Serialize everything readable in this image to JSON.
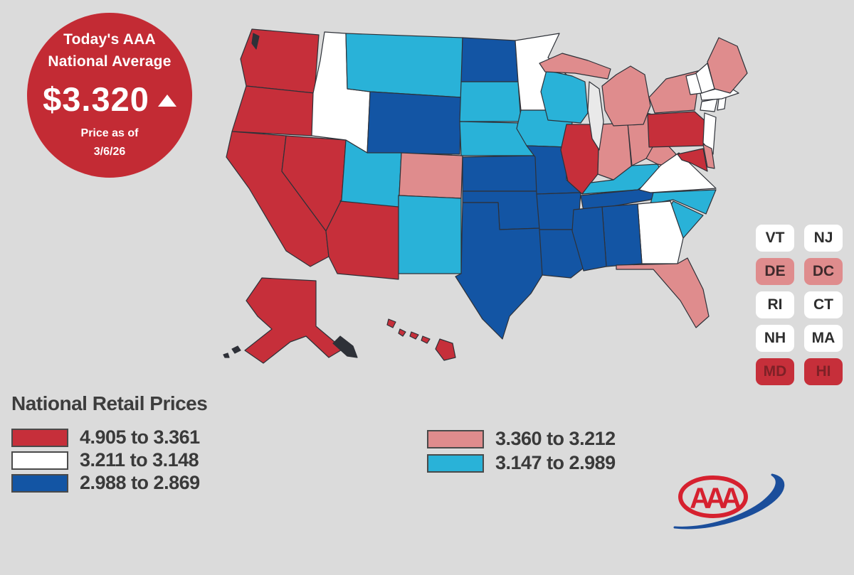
{
  "badge": {
    "line1": "Today's AAA",
    "line2": "National Average",
    "price": "$3.320",
    "trend": "up",
    "price_as_of_label": "Price as of",
    "date": "3/6/26",
    "background": "#C32B34"
  },
  "tiers": {
    "red": {
      "color": "#C62F3A",
      "range": "4.905 to 3.361"
    },
    "pink": {
      "color": "#DF8C8D",
      "range": "3.360 to 3.212"
    },
    "white": {
      "color": "#FFFFFF",
      "range": "3.211 to 3.148"
    },
    "cyan": {
      "color": "#29B2D8",
      "range": "3.147 to 2.989"
    },
    "navy": {
      "color": "#1355A4",
      "range": "2.988 to 2.869"
    }
  },
  "legend": {
    "title": "National Retail Prices",
    "left_rows": [
      {
        "tier": "red",
        "label": "4.905 to 3.361"
      },
      {
        "tier": "white",
        "label": "3.211 to 3.148"
      },
      {
        "tier": "navy",
        "label": "2.988 to 2.869"
      }
    ],
    "right_rows": [
      {
        "tier": "pink",
        "label": "3.360 to 3.212"
      },
      {
        "tier": "cyan",
        "label": "3.147 to 2.989"
      }
    ]
  },
  "state_boxes": [
    "VT",
    "NJ",
    "DE",
    "DC",
    "RI",
    "CT",
    "NH",
    "MA",
    "MD",
    "HI"
  ],
  "map": {
    "states": {
      "WA": "red",
      "OR": "red",
      "CA": "red",
      "NV": "red",
      "AZ": "red",
      "IL": "red",
      "PA": "red",
      "MD": "red",
      "AK": "red",
      "HI": "red",
      "CO": "pink",
      "MI": "pink",
      "IN": "pink",
      "OH": "pink",
      "WV": "pink",
      "FL": "pink",
      "NY": "pink",
      "ME": "pink",
      "DE": "pink",
      "DC": "pink",
      "ID": "white",
      "MN": "white",
      "VA": "white",
      "GA": "white",
      "NJ": "white",
      "VT": "white",
      "NH": "white",
      "MA": "white",
      "RI": "white",
      "CT": "white",
      "MT": "cyan",
      "UT": "cyan",
      "NM": "cyan",
      "SD": "cyan",
      "NE": "cyan",
      "IA": "cyan",
      "WI": "cyan",
      "KY": "cyan",
      "NC": "cyan",
      "SC": "cyan",
      "WY": "navy",
      "ND": "navy",
      "KS": "navy",
      "OK": "navy",
      "TX": "navy",
      "MO": "navy",
      "AR": "navy",
      "LA": "navy",
      "MS": "navy",
      "AL": "navy",
      "TN": "navy"
    }
  },
  "logo": {
    "text": "AAA"
  }
}
